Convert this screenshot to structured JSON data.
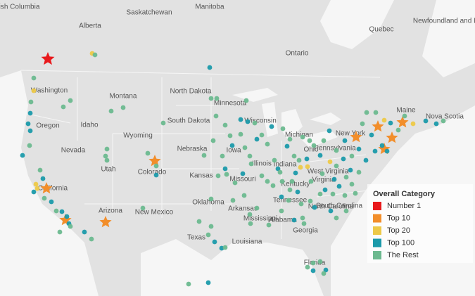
{
  "map": {
    "labels": [
      "British Columbia",
      "Alberta",
      "Saskatchewan",
      "Manitoba",
      "Ontario",
      "Quebec",
      "Newfoundland and Labrador",
      "Washington",
      "Montana",
      "North Dakota",
      "Minnesota",
      "Oregon",
      "Idaho",
      "South Dakota",
      "Wisconsin",
      "Michigan",
      "New York",
      "Maine",
      "Nova Scotia",
      "Wyoming",
      "Nebraska",
      "Iowa",
      "Illinois",
      "Ohio",
      "Pennsylvania",
      "Nevada",
      "Utah",
      "Colorado",
      "Kansas",
      "Missouri",
      "Indiana",
      "West Virginia",
      "Virginia",
      "Kentucky",
      "California",
      "Arizona",
      "New Mexico",
      "Oklahoma",
      "Arkansas",
      "Tennessee",
      "North Carolina",
      "South Carolina",
      "Mississippi",
      "Alabama",
      "Georgia",
      "Texas",
      "Louisiana",
      "Florida"
    ],
    "legend": {
      "title": "Overall Category",
      "items": [
        {
          "name": "Number 1",
          "color": "#e8191c"
        },
        {
          "name": "Top 10",
          "color": "#f28e2b"
        },
        {
          "name": "Top 20",
          "color": "#edc948"
        },
        {
          "name": "Top 100",
          "color": "#1b9aaa"
        },
        {
          "name": "The Rest",
          "color": "#6cb98f"
        }
      ]
    }
  }
}
